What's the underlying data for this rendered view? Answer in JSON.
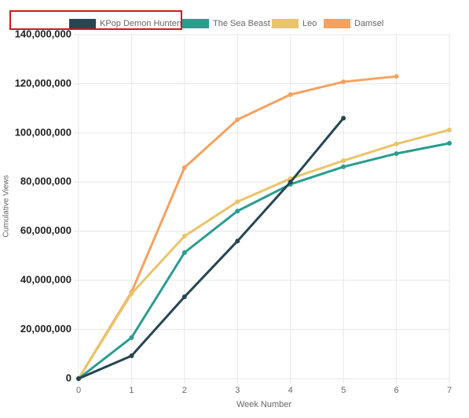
{
  "chart_data": {
    "type": "line",
    "x": [
      0,
      1,
      2,
      3,
      4,
      5,
      6,
      7
    ],
    "xlim": [
      0,
      7
    ],
    "xticks": [
      0,
      1,
      2,
      3,
      4,
      5,
      6,
      7
    ],
    "ylim": [
      0,
      140000000
    ],
    "yticks": [
      0,
      {
        "value": 20000000,
        "label": "20,000,000"
      },
      {
        "value": 40000000,
        "label": "40,000,000"
      },
      {
        "value": 60000000,
        "label": "60,000,000"
      },
      {
        "value": 80000000,
        "label": "80,000,000"
      },
      {
        "value": 100000000,
        "label": "100,000,000"
      },
      {
        "value": 120000000,
        "label": "120,000,000"
      },
      {
        "value": 140000000,
        "label": "140,000,000"
      }
    ],
    "xlabel": "Week Number",
    "ylabel": "Cumulative Views",
    "grid": true,
    "legend": "top",
    "series": [
      {
        "name": "KPop Demon Hunters",
        "color": "#264653",
        "values": [
          0,
          9300000,
          33300000,
          56000000,
          80000000,
          106000000,
          null,
          null
        ]
      },
      {
        "name": "The Sea Beast",
        "color": "#2a9d8f",
        "values": [
          0,
          16700000,
          51300000,
          68200000,
          79100000,
          86200000,
          91600000,
          95800000
        ]
      },
      {
        "name": "Leo",
        "color": "#e9c46a",
        "values": [
          0,
          34600000,
          58000000,
          72000000,
          81400000,
          88700000,
          95500000,
          101200000
        ]
      },
      {
        "name": "Damsel",
        "color": "#f4a261",
        "values": [
          0,
          35200000,
          85900000,
          105400000,
          115600000,
          120800000,
          123000000,
          null
        ]
      }
    ]
  }
}
